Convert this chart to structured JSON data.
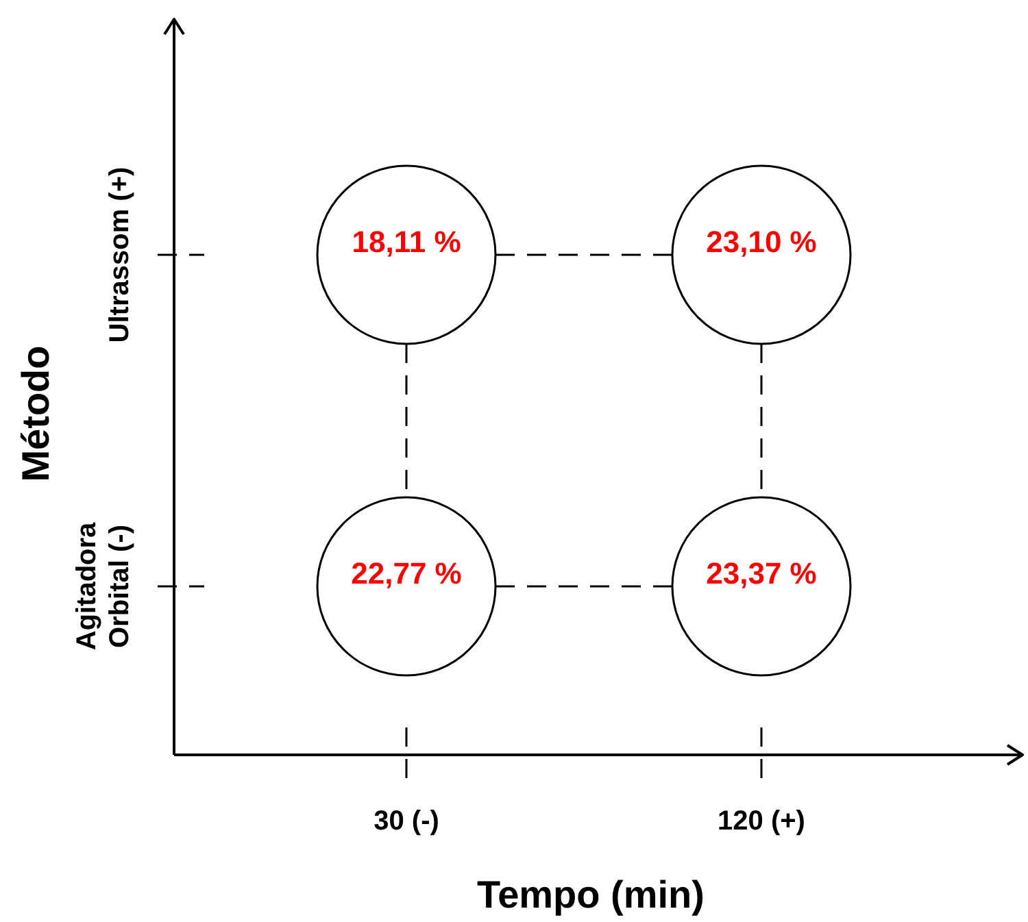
{
  "chart_data": {
    "type": "heatmap",
    "xlabel": "Tempo (min)",
    "ylabel": "Método",
    "categories": [
      "30 (-)",
      "120 (+)"
    ],
    "y_categories": [
      "Ultrassom (+)",
      "Agitadora Orbital (-)"
    ],
    "cells": [
      [
        18.11,
        23.1
      ],
      [
        22.77,
        23.37
      ]
    ],
    "cell_labels": [
      [
        "18,11 %",
        "23,10 %"
      ],
      [
        "22,77 %",
        "23,37 %"
      ]
    ]
  }
}
